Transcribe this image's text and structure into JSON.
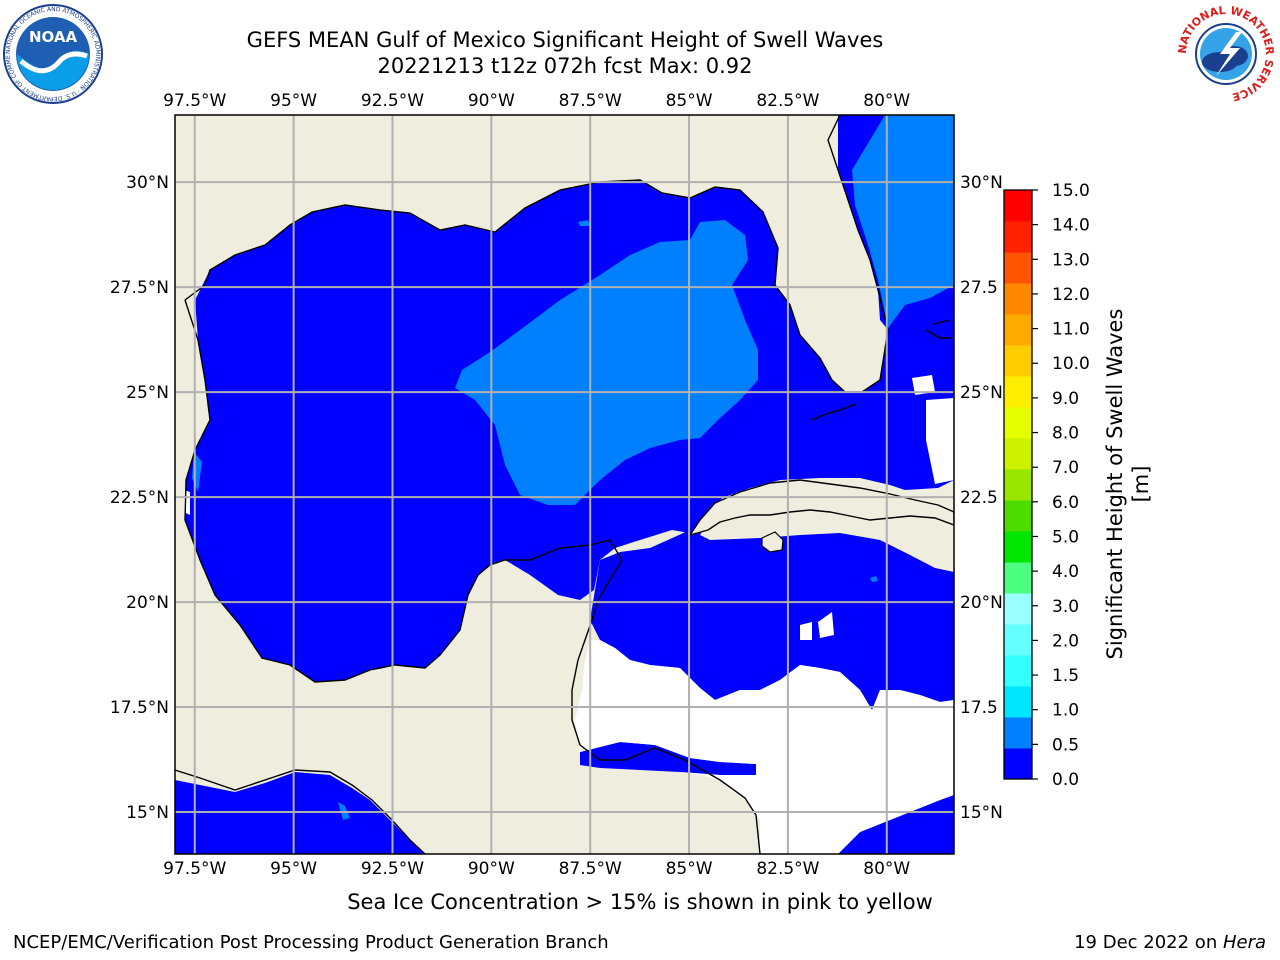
{
  "header": {
    "title_line1": "GEFS MEAN Gulf of Mexico Significant Height of Swell Waves",
    "title_line2": "20221213 t12z 072h fcst   Max: 0.92"
  },
  "logos": {
    "noaa_text": "NOAA",
    "noaa_ring_text": "NATIONAL OCEANIC AND ATMOSPHERIC ADMINISTRATION · U.S. DEPARTMENT OF COMMERCE",
    "nws_ring_text": "NATIONAL WEATHER SERVICE"
  },
  "map": {
    "lon_range": [
      -98.0,
      -78.3
    ],
    "lat_range": [
      14.0,
      31.6
    ],
    "lon_ticks": [
      "97.5°W",
      "95°W",
      "92.5°W",
      "90°W",
      "87.5°W",
      "85°W",
      "82.5°W",
      "80°W"
    ],
    "lon_tick_values": [
      -97.5,
      -95,
      -92.5,
      -90,
      -87.5,
      -85,
      -82.5,
      -80
    ],
    "lat_ticks_left": [
      "30°N",
      "27.5°N",
      "25°N",
      "22.5°N",
      "20°N",
      "17.5°N",
      "15°N"
    ],
    "lat_ticks_right": [
      "30°N",
      "27.5",
      "25°N",
      "22.5",
      "20°N",
      "17.5",
      "15°N"
    ],
    "lat_tick_values": [
      30,
      27.5,
      25,
      22.5,
      20,
      17.5,
      15
    ],
    "colors": {
      "land": "#efedde",
      "ocean_0_0_5": "#0000ff",
      "ocean_0_5_1_0": "#0080ff",
      "grid": "#b0b0b0",
      "coast": "#000000",
      "missing": "#ffffff"
    }
  },
  "colorbar": {
    "label": "Significant Height of Swell Waves [m]",
    "tick_labels": [
      "0.0",
      "0.5",
      "1.0",
      "1.5",
      "2.0",
      "3.0",
      "4.0",
      "5.0",
      "6.0",
      "7.0",
      "8.0",
      "9.0",
      "10.0",
      "11.0",
      "12.0",
      "13.0",
      "14.0",
      "15.0"
    ],
    "colors": [
      "#0000ff",
      "#0080ff",
      "#00e5ff",
      "#33ffff",
      "#66ffff",
      "#99ffff",
      "#4dff80",
      "#00e600",
      "#4ddb00",
      "#99e600",
      "#ccf200",
      "#e6ff00",
      "#ffee00",
      "#ffcc00",
      "#ffaa00",
      "#ff8800",
      "#ff5500",
      "#ff2200",
      "#ff0000"
    ]
  },
  "note": "Sea Ice Concentration > 15% is shown in pink to yellow",
  "footer": {
    "left": "NCEP/EMC/Verification Post Processing Product Generation Branch",
    "right_prefix": "19 Dec 2022 on ",
    "right_host": "Hera"
  }
}
